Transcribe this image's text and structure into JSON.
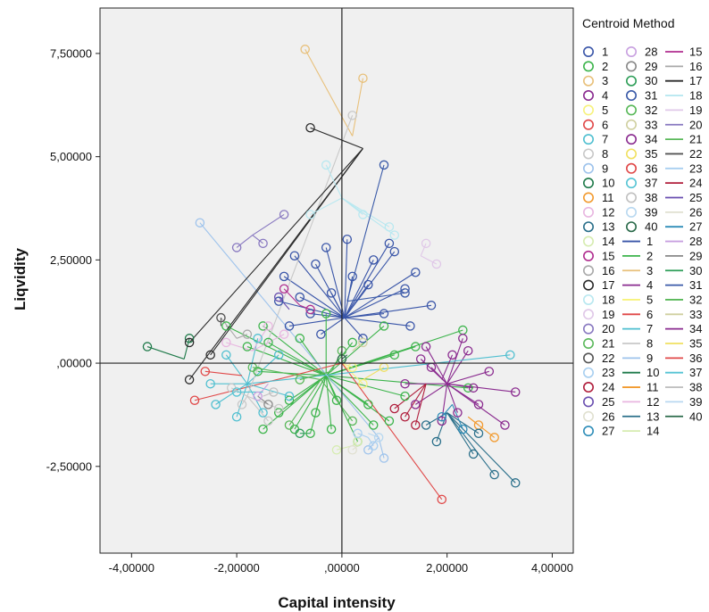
{
  "chart_data": {
    "type": "scatter",
    "title": "",
    "xlabel": "Capital intensity",
    "ylabel": "Liqvidity",
    "xlim": [
      -4.6,
      4.4
    ],
    "ylim": [
      -4.6,
      8.6
    ],
    "xticks": [
      -4,
      -2,
      0,
      2,
      4
    ],
    "xtick_labels": [
      "-4,00000",
      "-2,00000",
      ",00000",
      "2,00000",
      "4,00000"
    ],
    "yticks": [
      -2.5,
      0,
      2.5,
      5,
      7.5
    ],
    "ytick_labels": [
      "-2,50000",
      ",00000",
      "2,50000",
      "5,00000",
      "7,50000"
    ],
    "grid": false,
    "reference_lines": {
      "x": 0,
      "y": 0
    },
    "legend": {
      "title": "Centroid Method",
      "placement": "right",
      "marker_entries": [
        "1",
        "2",
        "3",
        "4",
        "5",
        "6",
        "7",
        "8",
        "9",
        "10",
        "11",
        "12",
        "13",
        "14",
        "15",
        "16",
        "17",
        "18",
        "19",
        "20",
        "21",
        "22",
        "23",
        "24",
        "25",
        "26",
        "27",
        "28",
        "29",
        "30",
        "31",
        "32",
        "33",
        "34",
        "35",
        "36",
        "37",
        "38",
        "39",
        "40"
      ],
      "line_entries": [
        "1",
        "2",
        "3",
        "4",
        "5",
        "6",
        "7",
        "8",
        "9",
        "10",
        "11",
        "12",
        "13",
        "14",
        "15",
        "16",
        "17",
        "18",
        "19",
        "20",
        "21",
        "22",
        "23",
        "24",
        "25",
        "26",
        "27",
        "28",
        "29",
        "30",
        "31",
        "32",
        "33",
        "34",
        "35",
        "36",
        "37",
        "38",
        "39",
        "40"
      ]
    },
    "colors": [
      "#3955a8",
      "#3cb44b",
      "#e8c07a",
      "#8a2b8f",
      "#f7f27c",
      "#e04848",
      "#4fbfd0",
      "#c8c8c8",
      "#9ec3ec",
      "#1f7a4a",
      "#f29a2e",
      "#e8b6e0",
      "#2a6f8a",
      "#d6ecb0",
      "#b02d8f",
      "#a8a8a8",
      "#2b2b2b",
      "#b8e8f0",
      "#e0c8e8",
      "#8878c0",
      "#5ab85a",
      "#555555",
      "#a8cff0",
      "#b01e3c",
      "#6a4fb0",
      "#e0e0d0",
      "#2e8db8",
      "#c8a0e0",
      "#888888",
      "#2e9e58",
      "#3a5aa8",
      "#58b858",
      "#d0d0a0",
      "#8a2b8f",
      "#f0e060",
      "#e04848",
      "#56c4d4",
      "#c0c0c0",
      "#b8d8f0",
      "#2a6a4a"
    ],
    "series": [
      {
        "name": "1",
        "centroid": [
          0.05,
          1.1
        ],
        "points": [
          [
            -0.3,
            2.8
          ],
          [
            0.1,
            3.0
          ],
          [
            0.9,
            2.9
          ],
          [
            -1.1,
            2.1
          ],
          [
            -0.8,
            1.6
          ],
          [
            0.5,
            1.9
          ],
          [
            1.2,
            1.8
          ],
          [
            -0.5,
            2.4
          ],
          [
            0.6,
            2.5
          ],
          [
            1.4,
            2.2
          ],
          [
            -0.9,
            2.6
          ],
          [
            0.2,
            2.1
          ],
          [
            -0.2,
            1.7
          ],
          [
            1.7,
            1.4
          ],
          [
            -1.2,
            1.5
          ],
          [
            0.8,
            1.2
          ],
          [
            -0.6,
            1.2
          ],
          [
            1.0,
            2.7
          ],
          [
            -0.4,
            0.7
          ],
          [
            0.4,
            0.6
          ],
          [
            1.3,
            0.9
          ],
          [
            -1.0,
            0.9
          ]
        ]
      },
      {
        "name": "2",
        "centroid": [
          -0.3,
          -0.3
        ],
        "points": [
          [
            -1.4,
            0.5
          ],
          [
            -1.0,
            -0.9
          ],
          [
            -0.8,
            0.6
          ],
          [
            0.2,
            0.5
          ],
          [
            -0.5,
            -1.2
          ],
          [
            0.5,
            -1.0
          ],
          [
            1.0,
            0.2
          ],
          [
            -1.6,
            -0.2
          ],
          [
            -0.2,
            -1.6
          ],
          [
            -0.6,
            -1.7
          ],
          [
            0.6,
            -1.5
          ],
          [
            1.2,
            -0.8
          ],
          [
            -1.2,
            -1.2
          ],
          [
            -0.3,
            1.2
          ],
          [
            0.9,
            -1.4
          ],
          [
            -1.8,
            0.4
          ],
          [
            1.4,
            0.4
          ],
          [
            -0.9,
            -1.6
          ],
          [
            0.3,
            -1.9
          ],
          [
            -1.5,
            0.9
          ],
          [
            2.3,
            0.8
          ],
          [
            2.4,
            -0.6
          ],
          [
            -2.2,
            0.9
          ],
          [
            -1.5,
            -1.6
          ],
          [
            0.8,
            0.9
          ],
          [
            -0.1,
            -0.9
          ]
        ]
      },
      {
        "name": "3",
        "centroid": [
          0.2,
          5.5
        ],
        "points": [
          [
            -0.7,
            7.6
          ],
          [
            0.4,
            6.9
          ]
        ]
      },
      {
        "name": "4",
        "centroid": [
          2.0,
          -0.5
        ],
        "points": [
          [
            1.6,
            0.4
          ],
          [
            2.4,
            0.3
          ],
          [
            1.4,
            -1.0
          ],
          [
            2.6,
            -1.0
          ],
          [
            1.9,
            -1.4
          ],
          [
            1.2,
            -0.5
          ],
          [
            2.8,
            -0.2
          ],
          [
            2.2,
            -1.2
          ],
          [
            3.3,
            -0.7
          ],
          [
            1.7,
            -0.1
          ],
          [
            2.3,
            0.6
          ],
          [
            1.5,
            0.1
          ],
          [
            3.1,
            -1.5
          ],
          [
            2.5,
            -0.6
          ]
        ]
      },
      {
        "name": "5",
        "centroid": [
          0.0,
          0.0
        ],
        "points": [
          [
            0.4,
            -0.5
          ],
          [
            0.2,
            -0.1
          ]
        ]
      },
      {
        "name": "6",
        "centroid": [
          0.0,
          0.0
        ],
        "points": [
          [
            1.9,
            -3.3
          ],
          [
            -2.8,
            -0.9
          ]
        ]
      },
      {
        "name": "7",
        "centroid": [
          -1.8,
          -0.5
        ],
        "points": [
          [
            -2.5,
            -0.5
          ],
          [
            -1.5,
            -1.2
          ],
          [
            -1.2,
            0.2
          ],
          [
            -2.2,
            0.2
          ],
          [
            -2.0,
            -1.3
          ],
          [
            -1.0,
            -0.8
          ],
          [
            -2.4,
            -1.0
          ],
          [
            -1.6,
            0.6
          ],
          [
            3.2,
            0.2
          ]
        ]
      },
      {
        "name": "8",
        "centroid": [
          -1.8,
          -0.8
        ],
        "points": [
          [
            -2.1,
            -0.6
          ],
          [
            -1.4,
            -1.4
          ],
          [
            -1.9,
            -1.0
          ],
          [
            -1.2,
            -1.1
          ],
          [
            0.2,
            6.0
          ]
        ]
      },
      {
        "name": "9",
        "centroid": [
          0.7,
          -1.8
        ],
        "points": [
          [
            -2.7,
            3.4
          ],
          [
            0.5,
            -2.1
          ],
          [
            0.8,
            -2.3
          ]
        ]
      },
      {
        "name": "10",
        "centroid": [
          -3.0,
          0.1
        ],
        "points": [
          [
            -3.7,
            0.4
          ],
          [
            -2.9,
            0.6
          ]
        ]
      },
      {
        "name": "11",
        "centroid": [
          2.4,
          -1.3
        ],
        "points": [
          [
            2.9,
            -1.8
          ],
          [
            2.6,
            -1.5
          ]
        ]
      },
      {
        "name": "12",
        "centroid": [
          -1.7,
          0.3
        ],
        "points": [
          [
            -1.4,
            0.9
          ],
          [
            -2.2,
            0.5
          ],
          [
            -1.1,
            0.7
          ]
        ]
      },
      {
        "name": "13",
        "centroid": [
          2.0,
          -1.2
        ],
        "points": [
          [
            2.5,
            -2.2
          ],
          [
            2.9,
            -2.7
          ],
          [
            3.3,
            -2.9
          ],
          [
            1.8,
            -1.9
          ],
          [
            2.6,
            -1.7
          ],
          [
            1.6,
            -1.5
          ]
        ]
      },
      {
        "name": "14",
        "centroid": [
          0.2,
          -2.0
        ],
        "points": [
          [
            0.3,
            -1.9
          ],
          [
            -0.1,
            -2.1
          ]
        ]
      },
      {
        "name": "15",
        "centroid": [
          -0.8,
          1.4
        ],
        "points": [
          [
            -1.1,
            1.8
          ],
          [
            -0.6,
            1.3
          ]
        ]
      },
      {
        "name": "16",
        "centroid": [
          -2.0,
          0.6
        ],
        "points": [
          [
            -2.3,
            1.1
          ],
          [
            -1.8,
            0.7
          ]
        ]
      },
      {
        "name": "17",
        "centroid": [
          0.4,
          5.2
        ],
        "points": [
          [
            -0.6,
            5.7
          ],
          [
            -2.9,
            0.5
          ],
          [
            -2.9,
            -0.4
          ],
          [
            -2.5,
            0.2
          ]
        ]
      },
      {
        "name": "18",
        "centroid": [
          0.0,
          4.0
        ],
        "points": [
          [
            -0.3,
            4.8
          ],
          [
            0.9,
            3.3
          ],
          [
            1.0,
            3.1
          ],
          [
            -0.6,
            3.6
          ],
          [
            0.4,
            3.6
          ]
        ]
      },
      {
        "name": "19",
        "centroid": [
          1.5,
          2.6
        ],
        "points": [
          [
            1.6,
            2.9
          ],
          [
            1.8,
            2.4
          ]
        ]
      },
      {
        "name": "20",
        "centroid": [
          -1.7,
          3.1
        ],
        "points": [
          [
            -1.1,
            3.6
          ],
          [
            -2.0,
            2.8
          ],
          [
            -1.5,
            2.9
          ]
        ]
      },
      {
        "name": "21",
        "centroid": [
          -0.4,
          -0.4
        ],
        "points": [
          [
            -1.0,
            -1.5
          ],
          [
            0.2,
            -1.4
          ],
          [
            -1.7,
            -0.1
          ]
        ]
      },
      {
        "name": "22",
        "centroid": [
          -2.3,
          0.9
        ],
        "points": [
          [
            -2.3,
            1.1
          ]
        ]
      },
      {
        "name": "23",
        "centroid": [
          0.5,
          -1.8
        ],
        "points": [
          [
            0.6,
            -2.0
          ],
          [
            0.3,
            -1.7
          ]
        ]
      },
      {
        "name": "24",
        "centroid": [
          1.6,
          -0.5
        ],
        "points": [
          [
            1.0,
            -1.1
          ],
          [
            1.4,
            -1.5
          ],
          [
            1.2,
            -1.3
          ]
        ]
      },
      {
        "name": "25",
        "centroid": [
          -1.0,
          1.3
        ],
        "points": [
          [
            -1.2,
            1.6
          ]
        ]
      },
      {
        "name": "26",
        "centroid": [
          0.3,
          -2.0
        ],
        "points": [
          [
            0.2,
            -2.1
          ]
        ]
      },
      {
        "name": "27",
        "centroid": [
          2.1,
          -1.0
        ],
        "points": [
          [
            2.3,
            -1.6
          ],
          [
            1.9,
            -1.3
          ]
        ]
      },
      {
        "name": "28",
        "centroid": [
          -1.4,
          -0.5
        ],
        "points": [
          [
            -1.6,
            -0.8
          ]
        ]
      },
      {
        "name": "29",
        "centroid": [
          -1.6,
          -0.8
        ],
        "points": [
          [
            -1.4,
            -1.0
          ]
        ]
      },
      {
        "name": "30",
        "centroid": [
          -0.6,
          -1.7
        ],
        "points": [
          [
            -0.8,
            -1.7
          ]
        ]
      },
      {
        "name": "31",
        "centroid": [
          0.1,
          1.5
        ],
        "points": [
          [
            0.8,
            4.8
          ],
          [
            1.2,
            1.7
          ]
        ]
      },
      {
        "name": "32",
        "centroid": [
          -0.2,
          -0.2
        ],
        "points": [
          [
            0.0,
            0.3
          ],
          [
            -0.8,
            -0.4
          ]
        ]
      },
      {
        "name": "33",
        "centroid": [
          0.2,
          0.3
        ],
        "points": [
          [
            0.4,
            0.5
          ]
        ]
      },
      {
        "name": "34",
        "centroid": [
          1.9,
          -0.4
        ],
        "points": [
          [
            2.1,
            0.2
          ]
        ]
      },
      {
        "name": "35",
        "centroid": [
          0.4,
          -0.4
        ],
        "points": [
          [
            0.8,
            -0.1
          ]
        ]
      },
      {
        "name": "36",
        "centroid": [
          -1.9,
          -0.3
        ],
        "points": [
          [
            -2.6,
            -0.2
          ]
        ]
      },
      {
        "name": "37",
        "centroid": [
          -1.5,
          -0.7
        ],
        "points": [
          [
            -2.0,
            -0.7
          ]
        ]
      },
      {
        "name": "38",
        "centroid": [
          -1.5,
          -0.8
        ],
        "points": [
          [
            -1.3,
            -0.7
          ]
        ]
      },
      {
        "name": "39",
        "centroid": [
          0.5,
          -1.7
        ],
        "points": [
          [
            0.7,
            -1.8
          ]
        ]
      },
      {
        "name": "40",
        "centroid": [
          0.1,
          0.2
        ],
        "points": [
          [
            0.0,
            0.1
          ]
        ]
      }
    ]
  }
}
